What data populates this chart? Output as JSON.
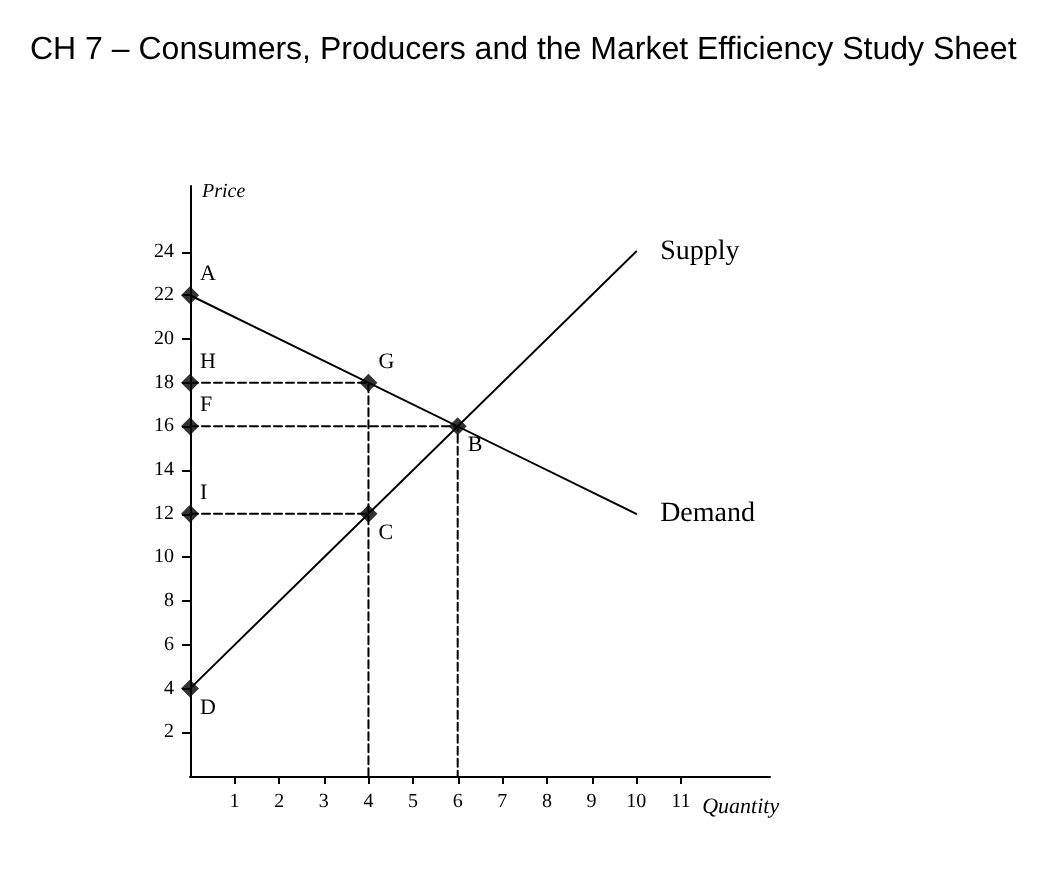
{
  "chart_data": {
    "type": "line",
    "title": "CH 7 – Consumers, Producers and the Market Efficiency Study Sheet",
    "xlabel": "Quantity",
    "ylabel": "Price",
    "xlim": [
      0,
      13
    ],
    "ylim": [
      0,
      27
    ],
    "xticks": [
      1,
      2,
      3,
      4,
      5,
      6,
      7,
      8,
      9,
      10,
      11
    ],
    "yticks": [
      2,
      4,
      6,
      8,
      10,
      12,
      14,
      16,
      18,
      20,
      22,
      24
    ],
    "grid": false,
    "legend": false,
    "series": [
      {
        "name": "Supply",
        "color": "#000000",
        "x": [
          0,
          10
        ],
        "values": [
          4,
          24
        ]
      },
      {
        "name": "Demand",
        "color": "#000000",
        "x": [
          0,
          10
        ],
        "values": [
          22,
          12
        ]
      },
      {
        "line_style": "dashed",
        "color": "#000000",
        "x": [
          0,
          4,
          4
        ],
        "values": [
          18,
          18,
          0
        ]
      },
      {
        "line_style": "dashed",
        "color": "#000000",
        "x": [
          0,
          6,
          6
        ],
        "values": [
          16,
          16,
          0
        ]
      },
      {
        "line_style": "dashed",
        "color": "#000000",
        "x": [
          0,
          4
        ],
        "values": [
          12,
          12
        ]
      },
      {
        "type": "scatter",
        "marker": "diamond",
        "color": "#000000",
        "x": [
          0,
          0,
          0,
          0,
          0,
          4,
          6,
          4
        ],
        "values": [
          22,
          18,
          16,
          12,
          4,
          18,
          16,
          12
        ]
      }
    ],
    "annotations": [
      {
        "text": "A",
        "x": 0,
        "y": 22
      },
      {
        "text": "H",
        "x": 0,
        "y": 18
      },
      {
        "text": "F",
        "x": 0,
        "y": 16
      },
      {
        "text": "I",
        "x": 0,
        "y": 12
      },
      {
        "text": "D",
        "x": 0,
        "y": 4
      },
      {
        "text": "G",
        "x": 4,
        "y": 18
      },
      {
        "text": "B",
        "x": 6,
        "y": 16
      },
      {
        "text": "C",
        "x": 4,
        "y": 12
      }
    ]
  }
}
